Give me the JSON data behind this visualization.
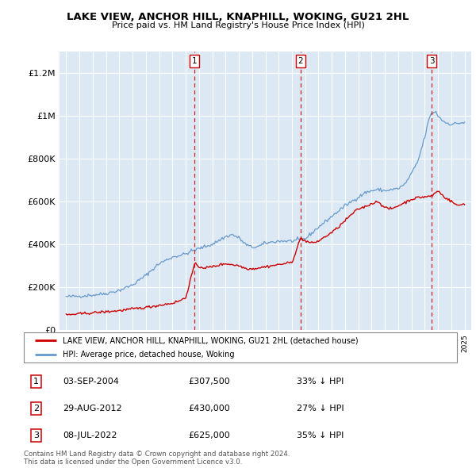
{
  "title": "LAKE VIEW, ANCHOR HILL, KNAPHILL, WOKING, GU21 2HL",
  "subtitle": "Price paid vs. HM Land Registry's House Price Index (HPI)",
  "legend_red": "LAKE VIEW, ANCHOR HILL, KNAPHILL, WOKING, GU21 2HL (detached house)",
  "legend_blue": "HPI: Average price, detached house, Woking",
  "transactions": [
    {
      "num": 1,
      "date": "03-SEP-2004",
      "price": 307500,
      "pct": "33% ↓ HPI"
    },
    {
      "num": 2,
      "date": "29-AUG-2012",
      "price": 430000,
      "pct": "27% ↓ HPI"
    },
    {
      "num": 3,
      "date": "08-JUL-2022",
      "price": 625000,
      "pct": "35% ↓ HPI"
    }
  ],
  "transaction_years": [
    2004.67,
    2012.66,
    2022.52
  ],
  "copyright": "Contains HM Land Registry data © Crown copyright and database right 2024.\nThis data is licensed under the Open Government Licence v3.0.",
  "ylim": [
    0,
    1300000
  ],
  "yticks": [
    0,
    200000,
    400000,
    600000,
    800000,
    1000000,
    1200000
  ],
  "ytick_labels": [
    "£0",
    "£200K",
    "£400K",
    "£600K",
    "£800K",
    "£1M",
    "£1.2M"
  ],
  "xmin": 1994.5,
  "xmax": 2025.5,
  "plot_bg": "#dce9f5",
  "red_color": "#cc0000",
  "blue_color": "#6699cc",
  "grid_color": "#ffffff",
  "hpi_anchors": {
    "1995.0": 155000,
    "1996.0": 158000,
    "1997.0": 163000,
    "1998.0": 170000,
    "1999.0": 185000,
    "2000.0": 210000,
    "2001.0": 255000,
    "2002.0": 310000,
    "2003.0": 340000,
    "2004.0": 355000,
    "2004.5": 370000,
    "2005.0": 380000,
    "2006.0": 400000,
    "2007.0": 435000,
    "2007.5": 445000,
    "2008.0": 430000,
    "2008.5": 400000,
    "2009.0": 385000,
    "2009.5": 390000,
    "2010.0": 405000,
    "2011.0": 415000,
    "2012.0": 415000,
    "2013.0": 425000,
    "2014.0": 480000,
    "2015.0": 530000,
    "2016.0": 580000,
    "2017.0": 620000,
    "2017.5": 640000,
    "2018.0": 650000,
    "2018.5": 655000,
    "2019.0": 650000,
    "2019.5": 655000,
    "2020.0": 660000,
    "2020.5": 680000,
    "2021.0": 730000,
    "2021.5": 790000,
    "2022.0": 900000,
    "2022.3": 980000,
    "2022.5": 1010000,
    "2022.8": 1020000,
    "2023.0": 1000000,
    "2023.3": 980000,
    "2023.5": 970000,
    "2024.0": 960000,
    "2024.5": 965000,
    "2025.0": 968000
  },
  "pp_anchors": {
    "1995.0": 70000,
    "1996.0": 75000,
    "1997.0": 80000,
    "1998.0": 85000,
    "1999.0": 90000,
    "2000.0": 98000,
    "2001.0": 105000,
    "2002.0": 115000,
    "2003.0": 125000,
    "2003.5": 135000,
    "2004.0": 150000,
    "2004.67": 307500,
    "2005.0": 295000,
    "2005.5": 290000,
    "2006.0": 295000,
    "2007.0": 310000,
    "2007.5": 305000,
    "2008.0": 300000,
    "2008.5": 288000,
    "2009.0": 285000,
    "2009.5": 290000,
    "2010.0": 295000,
    "2011.0": 305000,
    "2011.5": 310000,
    "2012.0": 315000,
    "2012.66": 430000,
    "2013.0": 415000,
    "2013.5": 405000,
    "2014.0": 415000,
    "2015.0": 455000,
    "2015.5": 480000,
    "2016.0": 510000,
    "2016.5": 540000,
    "2017.0": 565000,
    "2017.5": 575000,
    "2018.0": 590000,
    "2018.5": 600000,
    "2019.0": 570000,
    "2019.5": 565000,
    "2020.0": 580000,
    "2020.5": 595000,
    "2021.0": 610000,
    "2021.5": 618000,
    "2022.52": 625000,
    "2022.8": 640000,
    "2023.0": 650000,
    "2023.3": 630000,
    "2023.5": 620000,
    "2024.0": 600000,
    "2024.5": 580000,
    "2025.0": 590000
  }
}
